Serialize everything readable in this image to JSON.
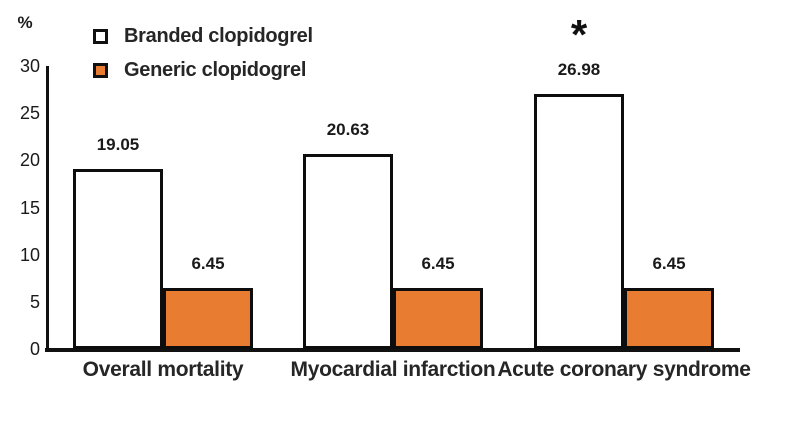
{
  "chart_data": {
    "type": "bar",
    "title": "",
    "xlabel": "",
    "ylabel": "%",
    "categories": [
      "Overall mortality",
      "Myocardial infarction",
      "Acute coronary syndrome"
    ],
    "series": [
      {
        "name": "Branded clopidogrel",
        "values": [
          19.05,
          20.63,
          26.98
        ],
        "value_labels": [
          "19.05",
          "20.63",
          "26.98"
        ],
        "fill": "#FFFFFF",
        "border": "#0D0D0D"
      },
      {
        "name": "Generic clopidogrel",
        "values": [
          6.45,
          6.45,
          6.45
        ],
        "value_labels": [
          "6.45",
          "6.45",
          "6.45"
        ],
        "fill": "#E87D31",
        "border": "#0D0D0D"
      }
    ],
    "y_ticks": [
      0,
      5,
      10,
      15,
      20,
      25,
      30
    ],
    "y_tick_labels": [
      "0",
      "5",
      "10",
      "15",
      "20",
      "25",
      "30"
    ],
    "ylim": [
      0,
      30
    ],
    "grid": false,
    "legend_position": "top-left",
    "annotations": [
      {
        "text": "*",
        "meaning": "significance-marker",
        "series_index": 0,
        "category_index": 2
      }
    ]
  },
  "colors": {
    "background": "#FFFFFF",
    "axis": "#111111",
    "text": "#262626",
    "generic_bar_orange": "#E87D31",
    "branded_bar_white": "#FFFFFF"
  }
}
